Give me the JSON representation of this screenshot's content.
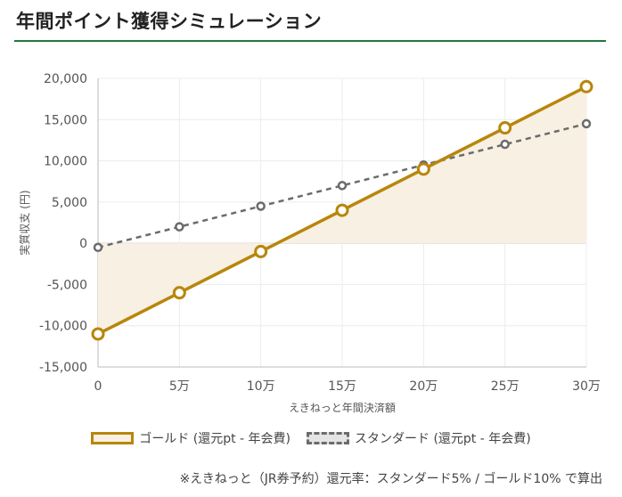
{
  "page": {
    "title": "年間ポイント獲得シミュレーション",
    "footnote": "※えきねっと（JR券予約）還元率：スタンダード5% / ゴールド10% で算出"
  },
  "colors": {
    "accent_rule": "#1e7a3c",
    "gold_line": "#b8860b",
    "gold_fill": "#f7f0e3",
    "standard_line": "#6b6b6b",
    "standard_fill": "#e4e4e4",
    "grid": "#ececec",
    "zero_line": "#cccccc"
  },
  "legend": {
    "gold_label": "ゴールド (還元pt - 年会費)",
    "standard_label": "スタンダード (還元pt - 年会費)"
  },
  "chart_data": {
    "type": "line",
    "xlabel": "えきねっと年間決済額",
    "ylabel": "実質収支 (円)",
    "categories": [
      "0",
      "5万",
      "10万",
      "15万",
      "20万",
      "25万",
      "30万"
    ],
    "ylim": [
      -15000,
      20000
    ],
    "yticks": [
      20000,
      15000,
      10000,
      5000,
      0,
      -5000,
      -10000,
      -15000
    ],
    "ytick_labels": [
      "20,000",
      "15,000",
      "10,000",
      "5,000",
      "0",
      "-5,000",
      "-10,000",
      "-15,000"
    ],
    "grid": true,
    "legend_position": "bottom",
    "series": [
      {
        "name": "ゴールド (還元pt - 年会費)",
        "values": [
          -11000,
          -6000,
          -1000,
          4000,
          9000,
          14000,
          19000
        ],
        "style": "solid",
        "filled": true
      },
      {
        "name": "スタンダード (還元pt - 年会費)",
        "values": [
          -500,
          2000,
          4500,
          7000,
          9500,
          12000,
          14500
        ],
        "style": "dashed",
        "filled": false
      }
    ]
  }
}
